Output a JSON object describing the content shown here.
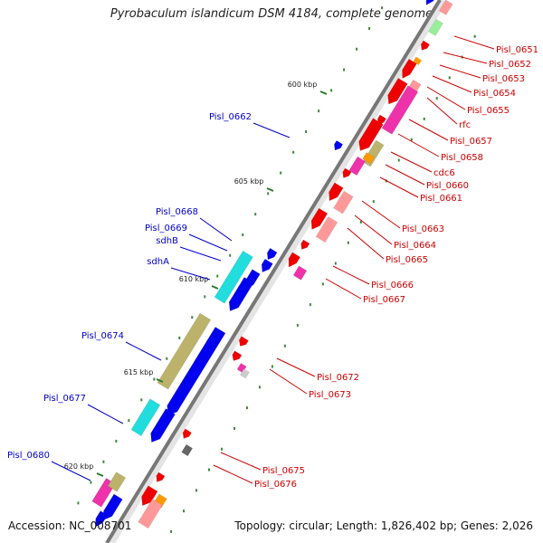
{
  "title": "Pyrobaculum islandicum DSM 4184, complete genome",
  "footer": {
    "accession": "Accession: NC_008701",
    "summary": "Topology: circular; Length: 1,826,402 bp; Genes: 2,026"
  },
  "colors": {
    "backbone": "#777777",
    "label_left": "#0000cc",
    "label_right": "#cc0000",
    "tick_mark": "#2a7a2a"
  },
  "ticks": [
    {
      "label": "600 kbp"
    },
    {
      "label": "605 kbp"
    },
    {
      "label": "610 kbp"
    },
    {
      "label": "615 kbp"
    },
    {
      "label": "620 kbp"
    }
  ],
  "labels_left": [
    {
      "text": "Pisl_0662"
    },
    {
      "text": "Pisl_0668"
    },
    {
      "text": "Pisl_0669"
    },
    {
      "text": "sdhB"
    },
    {
      "text": "sdhA"
    },
    {
      "text": "Pisl_0674"
    },
    {
      "text": "Pisl_0677"
    },
    {
      "text": "Pisl_0680"
    }
  ],
  "labels_right": [
    {
      "text": "Pisl_0651"
    },
    {
      "text": "Pisl_0652"
    },
    {
      "text": "Pisl_0653"
    },
    {
      "text": "Pisl_0654"
    },
    {
      "text": "Pisl_0655"
    },
    {
      "text": "rfc"
    },
    {
      "text": "Pisl_0657"
    },
    {
      "text": "Pisl_0658"
    },
    {
      "text": "cdc6"
    },
    {
      "text": "Pisl_0660"
    },
    {
      "text": "Pisl_0661"
    },
    {
      "text": "Pisl_0663"
    },
    {
      "text": "Pisl_0664"
    },
    {
      "text": "Pisl_0665"
    },
    {
      "text": "Pisl_0666"
    },
    {
      "text": "Pisl_0667"
    },
    {
      "text": "Pisl_0672"
    },
    {
      "text": "Pisl_0673"
    },
    {
      "text": "Pisl_0675"
    },
    {
      "text": "Pisl_0676"
    }
  ]
}
